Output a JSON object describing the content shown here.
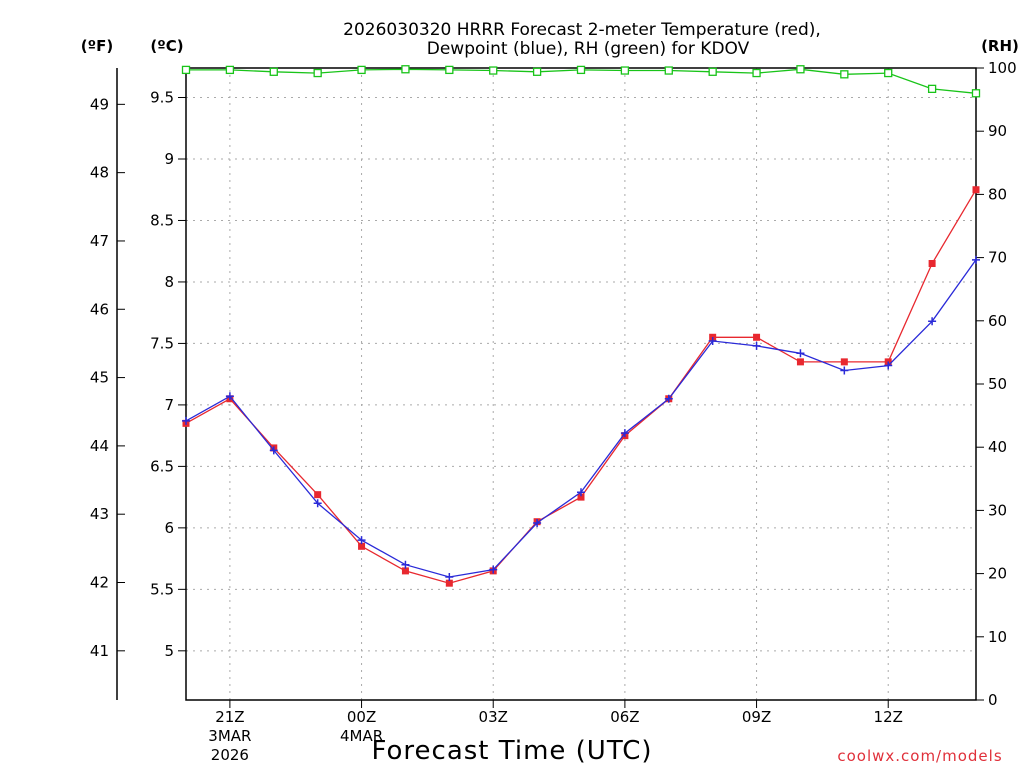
{
  "chart_data": {
    "type": "line",
    "title_line1": "2026030320 HRRR Forecast 2-meter Temperature (red),",
    "title_line2": "Dewpoint (blue), RH (green) for KDOV",
    "unit_f": "(ºF)",
    "unit_c": "(ºC)",
    "unit_rh": "(RH)",
    "xlabel": "Forecast Time (UTC)",
    "credit": "coolwx.com/models",
    "celsius_range": [
      4.6,
      9.74
    ],
    "fahrenheit_ticks": [
      "41",
      "42",
      "43",
      "44",
      "45",
      "46",
      "47",
      "48",
      "49"
    ],
    "celsius_ticks": [
      "5",
      "5.5",
      "6",
      "6.5",
      "7",
      "7.5",
      "8",
      "8.5",
      "9",
      "9.5"
    ],
    "rh_range": [
      0,
      100
    ],
    "rh_ticks": [
      "0",
      "10",
      "20",
      "30",
      "40",
      "50",
      "60",
      "70",
      "80",
      "90",
      "100"
    ],
    "x_range": [
      -1,
      17
    ],
    "x_ticks": [
      {
        "hour": 0,
        "label": "21Z",
        "sub1": "3MAR",
        "sub2": "2026"
      },
      {
        "hour": 3,
        "label": "00Z",
        "sub1": "4MAR",
        "sub2": ""
      },
      {
        "hour": 6,
        "label": "03Z",
        "sub1": "",
        "sub2": ""
      },
      {
        "hour": 9,
        "label": "06Z",
        "sub1": "",
        "sub2": ""
      },
      {
        "hour": 12,
        "label": "09Z",
        "sub1": "",
        "sub2": ""
      },
      {
        "hour": 15,
        "label": "12Z",
        "sub1": "",
        "sub2": ""
      }
    ],
    "hours": [
      -1,
      0,
      1,
      2,
      3,
      4,
      5,
      6,
      7,
      8,
      9,
      10,
      11,
      12,
      13,
      14,
      15,
      16,
      17
    ],
    "series": [
      {
        "name": "Temperature",
        "axis": "C",
        "color": "#e8282f",
        "marker": "square-filled",
        "values": [
          6.85,
          7.05,
          6.65,
          6.27,
          5.85,
          5.65,
          5.55,
          5.65,
          6.05,
          6.25,
          6.75,
          7.05,
          7.55,
          7.55,
          7.35,
          7.35,
          7.35,
          8.15,
          8.75
        ]
      },
      {
        "name": "Dewpoint",
        "axis": "C",
        "color": "#2a2ad8",
        "marker": "plus",
        "values": [
          6.87,
          7.07,
          6.63,
          6.2,
          5.9,
          5.7,
          5.6,
          5.66,
          6.04,
          6.29,
          6.77,
          7.05,
          7.52,
          7.48,
          7.42,
          7.28,
          7.32,
          7.68,
          8.18
        ]
      },
      {
        "name": "RH",
        "axis": "RH",
        "color": "#19c419",
        "marker": "square-open",
        "values": [
          99.7,
          99.7,
          99.4,
          99.2,
          99.7,
          99.8,
          99.7,
          99.6,
          99.4,
          99.7,
          99.6,
          99.6,
          99.4,
          99.2,
          99.8,
          99.0,
          99.2,
          96.7,
          96.0
        ]
      }
    ]
  }
}
